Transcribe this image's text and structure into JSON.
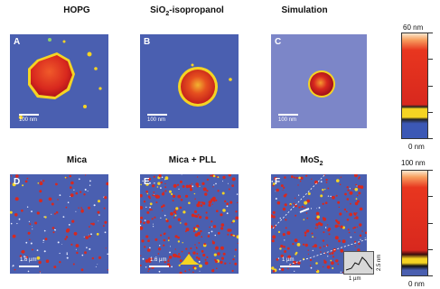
{
  "top_row": {
    "titles": [
      "HOPG",
      "SiO",
      "Simulation"
    ],
    "title_suffix_sub": "2",
    "title_suffix_rest": "-isopropanol",
    "labels": [
      "A",
      "B",
      "C"
    ],
    "scalebars": [
      "100 nm",
      "100 nm",
      "100 nm"
    ]
  },
  "bottom_row": {
    "titles": [
      "Mica",
      "Mica + PLL",
      "MoS"
    ],
    "title_sub": "2",
    "labels": [
      "D",
      "E",
      "F"
    ],
    "scalebars": [
      "1.6 µm",
      "1.6 µm",
      "1 µm"
    ]
  },
  "colorbar_top": {
    "max": "60 nm",
    "min": "0 nm"
  },
  "colorbar_bottom": {
    "max": "100 nm",
    "min": "0 nm"
  },
  "inset": {
    "height_label": "2.5 nm",
    "width_label": "1 µm"
  },
  "colors": {
    "substrate": "#4a5fb0",
    "simulation_bg": "#7c86c8",
    "droplet_red": "#d8281e",
    "droplet_yellow": "#f5d423"
  }
}
